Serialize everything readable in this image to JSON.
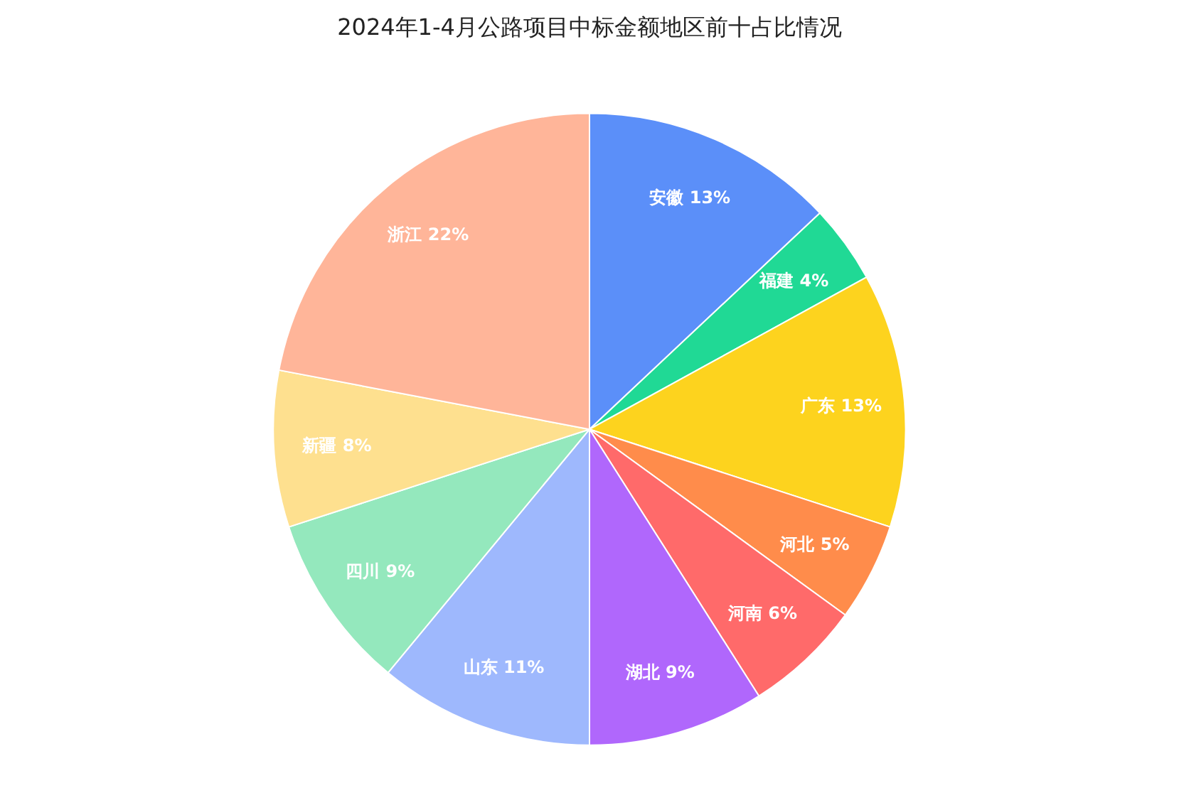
{
  "chart_data": {
    "type": "pie",
    "title": "2024年1-4月公路项目中标金额地区前十占比情况",
    "categories": [
      "安徽",
      "福建",
      "广东",
      "河北",
      "河南",
      "湖北",
      "山东",
      "四川",
      "新疆",
      "浙江"
    ],
    "values": [
      13,
      4,
      13,
      5,
      6,
      9,
      11,
      9,
      8,
      22
    ],
    "value_labels": [
      "13%",
      "4%",
      "13%",
      "5%",
      "6%",
      "9%",
      "11%",
      "9%",
      "8%",
      "22%"
    ],
    "colors": [
      "#5b8ff9",
      "#20d995",
      "#fdd31e",
      "#ff8c4b",
      "#ff6a6a",
      "#b067fc",
      "#9eb8fd",
      "#94e8bd",
      "#fee08f",
      "#ffb599"
    ]
  }
}
